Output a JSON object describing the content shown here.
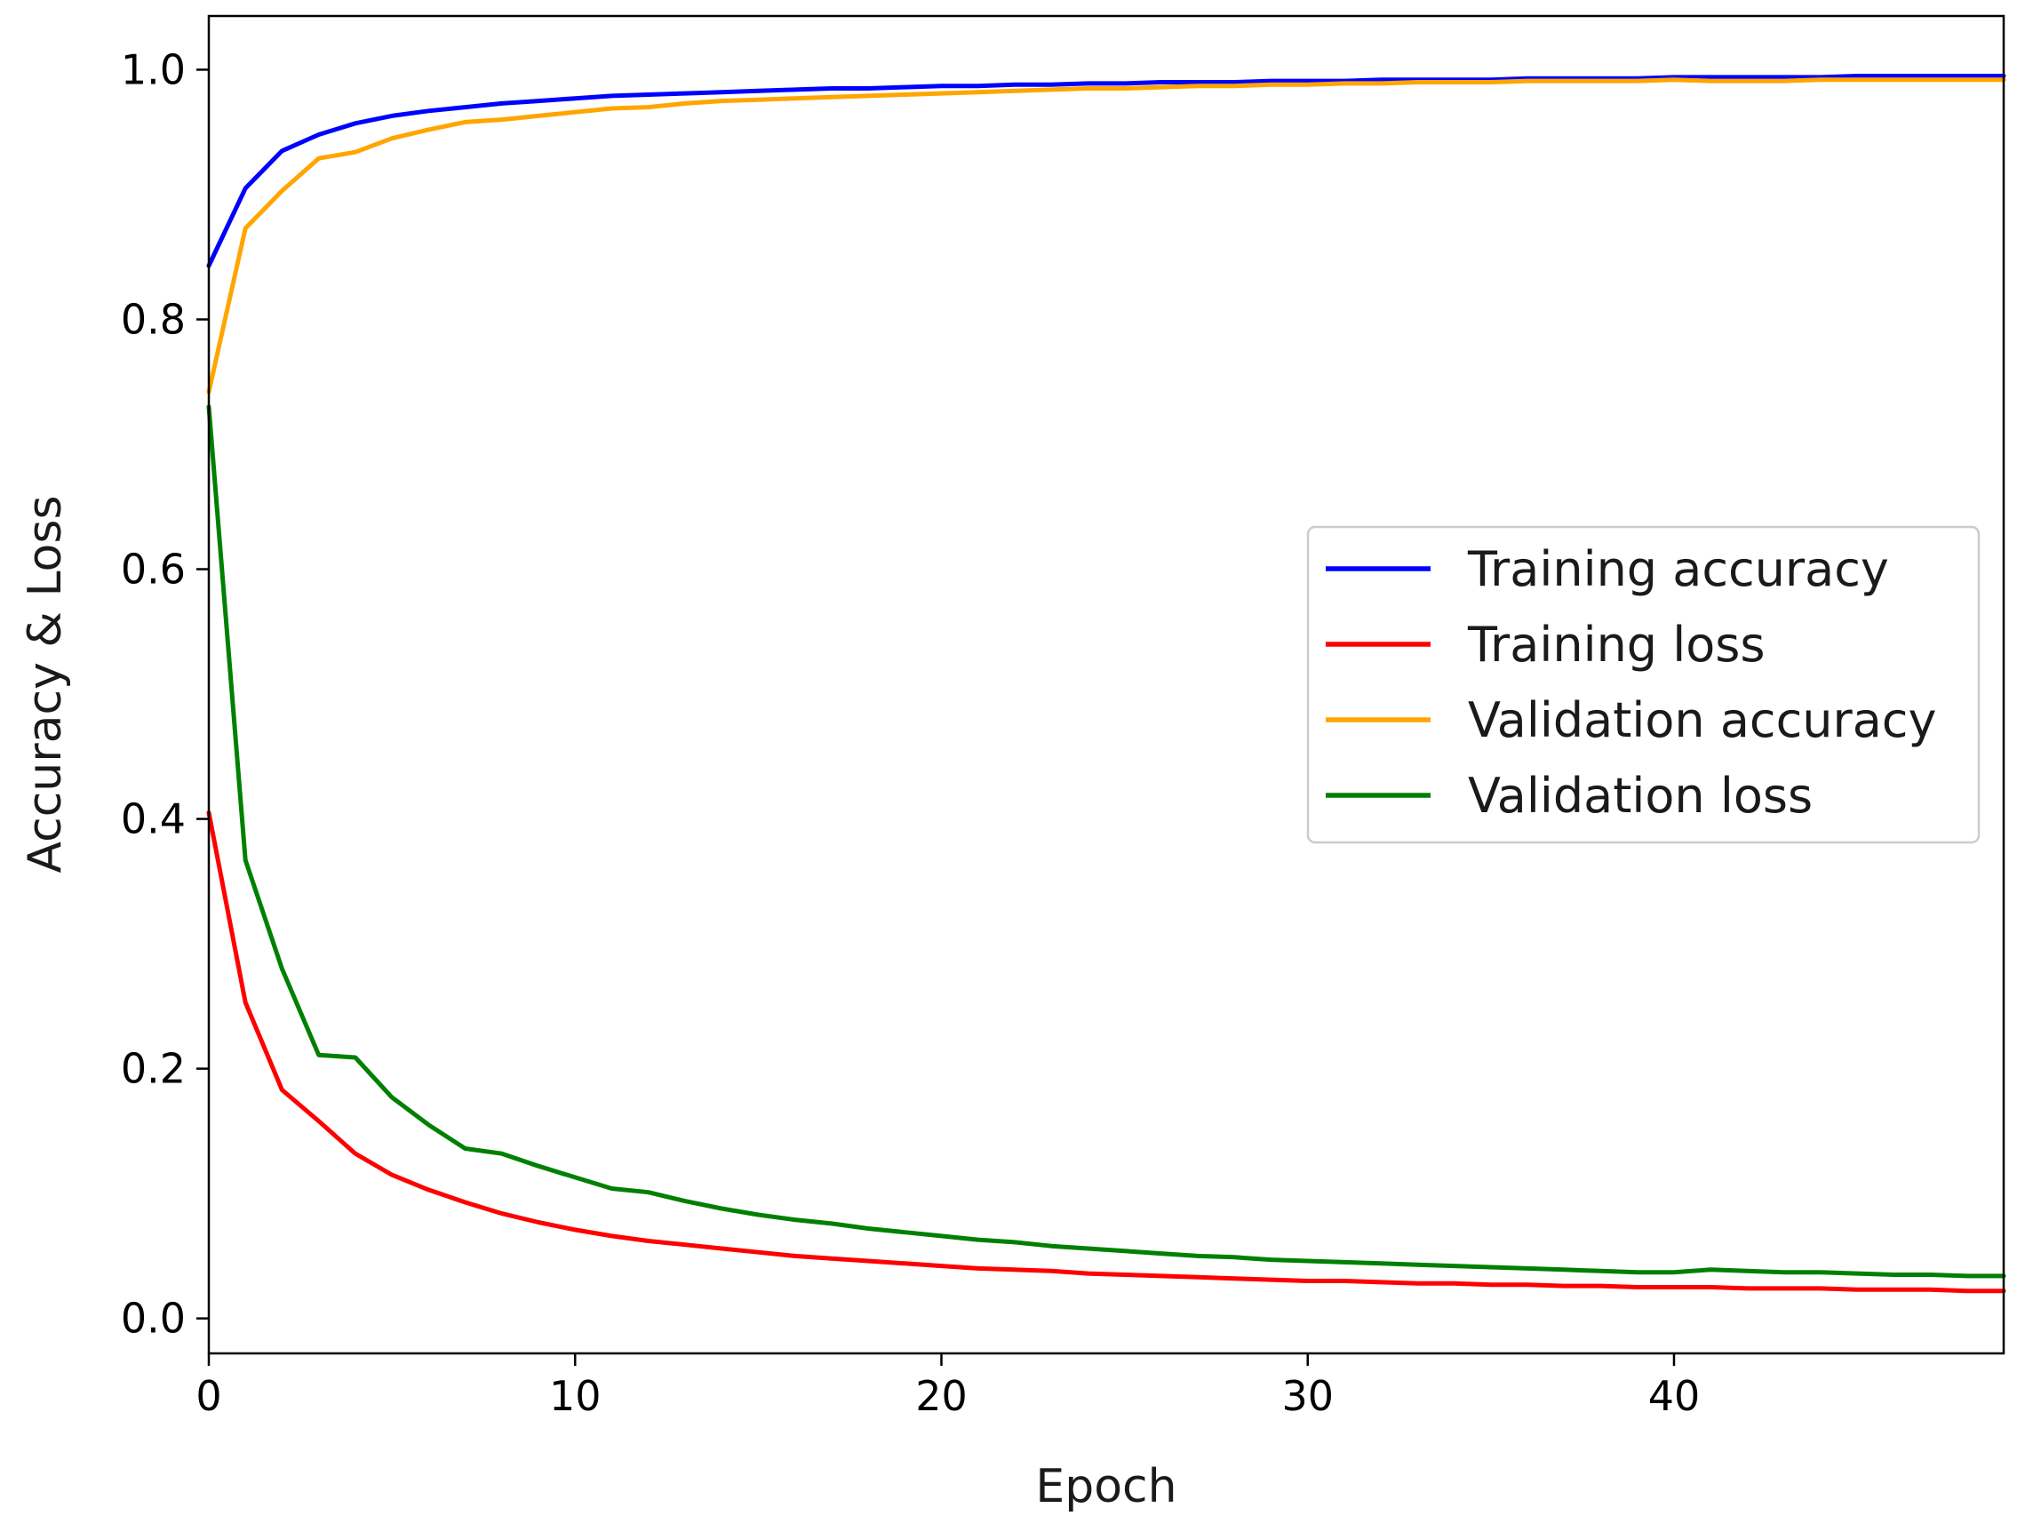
{
  "chart_data": {
    "type": "line",
    "title": "",
    "xlabel": "Epoch",
    "ylabel": "Accuracy & Loss",
    "xlim": [
      0,
      49
    ],
    "ylim": [
      -0.028,
      1.043
    ],
    "xticks": [
      0,
      10,
      20,
      30,
      40
    ],
    "yticks": [
      0.0,
      0.2,
      0.4,
      0.6,
      0.8,
      1.0
    ],
    "xtick_labels": [
      "0",
      "10",
      "20",
      "30",
      "40"
    ],
    "ytick_labels": [
      "0.0",
      "0.2",
      "0.4",
      "0.6",
      "0.8",
      "1.0"
    ],
    "grid": false,
    "legend_position": "center-right",
    "x": [
      0,
      1,
      2,
      3,
      4,
      5,
      6,
      7,
      8,
      9,
      10,
      11,
      12,
      13,
      14,
      15,
      16,
      17,
      18,
      19,
      20,
      21,
      22,
      23,
      24,
      25,
      26,
      27,
      28,
      29,
      30,
      31,
      32,
      33,
      34,
      35,
      36,
      37,
      38,
      39,
      40,
      41,
      42,
      43,
      44,
      45,
      46,
      47,
      48,
      49
    ],
    "series": [
      {
        "name": "Training accuracy",
        "color": "#0000ff",
        "values": [
          0.843,
          0.905,
          0.935,
          0.948,
          0.957,
          0.963,
          0.967,
          0.97,
          0.973,
          0.975,
          0.977,
          0.979,
          0.98,
          0.981,
          0.982,
          0.983,
          0.984,
          0.985,
          0.985,
          0.986,
          0.987,
          0.987,
          0.988,
          0.988,
          0.989,
          0.989,
          0.99,
          0.99,
          0.99,
          0.991,
          0.991,
          0.991,
          0.992,
          0.992,
          0.992,
          0.992,
          0.993,
          0.993,
          0.993,
          0.993,
          0.994,
          0.994,
          0.994,
          0.994,
          0.994,
          0.995,
          0.995,
          0.995,
          0.995,
          0.995
        ]
      },
      {
        "name": "Training loss",
        "color": "#ff0000",
        "values": [
          0.405,
          0.253,
          0.183,
          0.158,
          0.132,
          0.115,
          0.103,
          0.093,
          0.084,
          0.077,
          0.071,
          0.066,
          0.062,
          0.059,
          0.056,
          0.053,
          0.05,
          0.048,
          0.046,
          0.044,
          0.042,
          0.04,
          0.039,
          0.038,
          0.036,
          0.035,
          0.034,
          0.033,
          0.032,
          0.031,
          0.03,
          0.03,
          0.029,
          0.028,
          0.028,
          0.027,
          0.027,
          0.026,
          0.026,
          0.025,
          0.025,
          0.025,
          0.024,
          0.024,
          0.024,
          0.023,
          0.023,
          0.023,
          0.022,
          0.022
        ]
      },
      {
        "name": "Validation accuracy",
        "color": "#ffa500",
        "values": [
          0.742,
          0.873,
          0.903,
          0.929,
          0.934,
          0.945,
          0.952,
          0.958,
          0.96,
          0.963,
          0.966,
          0.969,
          0.97,
          0.973,
          0.975,
          0.976,
          0.977,
          0.978,
          0.979,
          0.98,
          0.981,
          0.982,
          0.983,
          0.984,
          0.985,
          0.985,
          0.986,
          0.987,
          0.987,
          0.988,
          0.988,
          0.989,
          0.989,
          0.99,
          0.99,
          0.99,
          0.991,
          0.991,
          0.991,
          0.991,
          0.992,
          0.991,
          0.991,
          0.991,
          0.992,
          0.992,
          0.992,
          0.992,
          0.992,
          0.992
        ]
      },
      {
        "name": "Validation loss",
        "color": "#008000",
        "values": [
          0.73,
          0.367,
          0.28,
          0.211,
          0.209,
          0.177,
          0.155,
          0.136,
          0.132,
          0.122,
          0.113,
          0.104,
          0.101,
          0.094,
          0.088,
          0.083,
          0.079,
          0.076,
          0.072,
          0.069,
          0.066,
          0.063,
          0.061,
          0.058,
          0.056,
          0.054,
          0.052,
          0.05,
          0.049,
          0.047,
          0.046,
          0.045,
          0.044,
          0.043,
          0.042,
          0.041,
          0.04,
          0.039,
          0.038,
          0.037,
          0.037,
          0.039,
          0.038,
          0.037,
          0.037,
          0.036,
          0.035,
          0.035,
          0.034,
          0.034
        ]
      }
    ]
  }
}
